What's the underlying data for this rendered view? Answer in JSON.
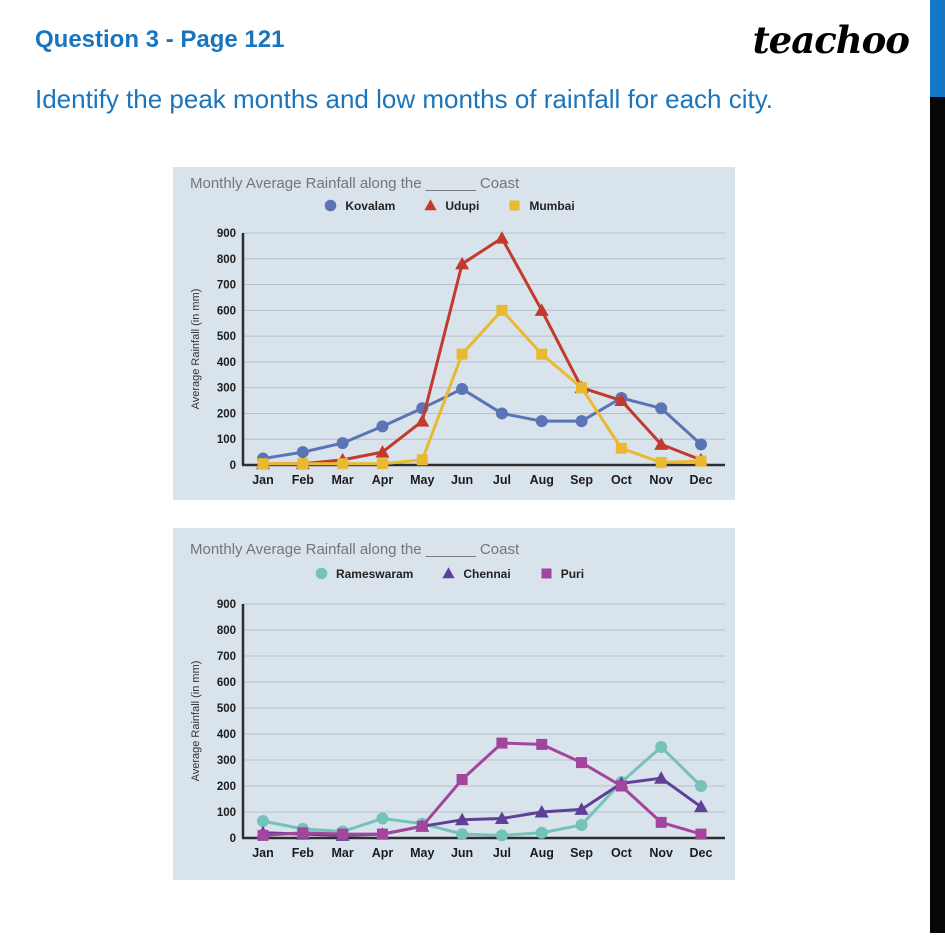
{
  "header": {
    "title": "Question 3 - Page 121",
    "logo": "teachoo",
    "question": "Identify the peak months and low months of rainfall for each city."
  },
  "colors": {
    "heading_blue": "#1b75bc",
    "edge_bar_blue": "#1378c8",
    "edge_bar_black": "#070707",
    "panel_bg": "#d9e3ec",
    "grid": "#b5c0ca",
    "axis": "#2e2e2e",
    "chart_title_gray": "#757575"
  },
  "chart_data": [
    {
      "type": "line",
      "title": "Monthly Average Rainfall along the ______ Coast",
      "ylabel": "Average Rainfall (in mm)",
      "ylim": [
        0,
        900
      ],
      "ytick_step": 100,
      "grid": true,
      "legend_position": "top",
      "categories": [
        "Jan",
        "Feb",
        "Mar",
        "Apr",
        "May",
        "Jun",
        "Jul",
        "Aug",
        "Sep",
        "Oct",
        "Nov",
        "Dec"
      ],
      "series": [
        {
          "name": "Kovalam",
          "color": "#5b74b5",
          "marker": "circle",
          "values": [
            25,
            50,
            85,
            150,
            220,
            295,
            200,
            170,
            170,
            260,
            220,
            80
          ]
        },
        {
          "name": "Udupi",
          "color": "#c13a2c",
          "marker": "triangle",
          "values": [
            5,
            5,
            20,
            50,
            170,
            780,
            880,
            600,
            300,
            250,
            80,
            20
          ]
        },
        {
          "name": "Mumbai",
          "color": "#e9b931",
          "marker": "square",
          "values": [
            5,
            5,
            5,
            5,
            20,
            430,
            600,
            430,
            300,
            65,
            10,
            15
          ]
        }
      ]
    },
    {
      "type": "line",
      "title": "Monthly Average Rainfall along the ______ Coast",
      "ylabel": "Average Rainfall (in mm)",
      "ylim": [
        0,
        900
      ],
      "ytick_step": 100,
      "grid": true,
      "legend_position": "top",
      "categories": [
        "Jan",
        "Feb",
        "Mar",
        "Apr",
        "May",
        "Jun",
        "Jul",
        "Aug",
        "Sep",
        "Oct",
        "Nov",
        "Dec"
      ],
      "series": [
        {
          "name": "Rameswaram",
          "color": "#74c2ba",
          "marker": "circle",
          "values": [
            65,
            35,
            25,
            75,
            55,
            15,
            10,
            20,
            50,
            215,
            350,
            200
          ]
        },
        {
          "name": "Chennai",
          "color": "#5f4096",
          "marker": "triangle",
          "values": [
            20,
            15,
            10,
            15,
            45,
            70,
            75,
            100,
            110,
            210,
            230,
            120
          ]
        },
        {
          "name": "Puri",
          "color": "#a3459c",
          "marker": "square",
          "values": [
            10,
            20,
            15,
            15,
            45,
            225,
            365,
            360,
            290,
            200,
            60,
            15
          ]
        }
      ]
    }
  ]
}
